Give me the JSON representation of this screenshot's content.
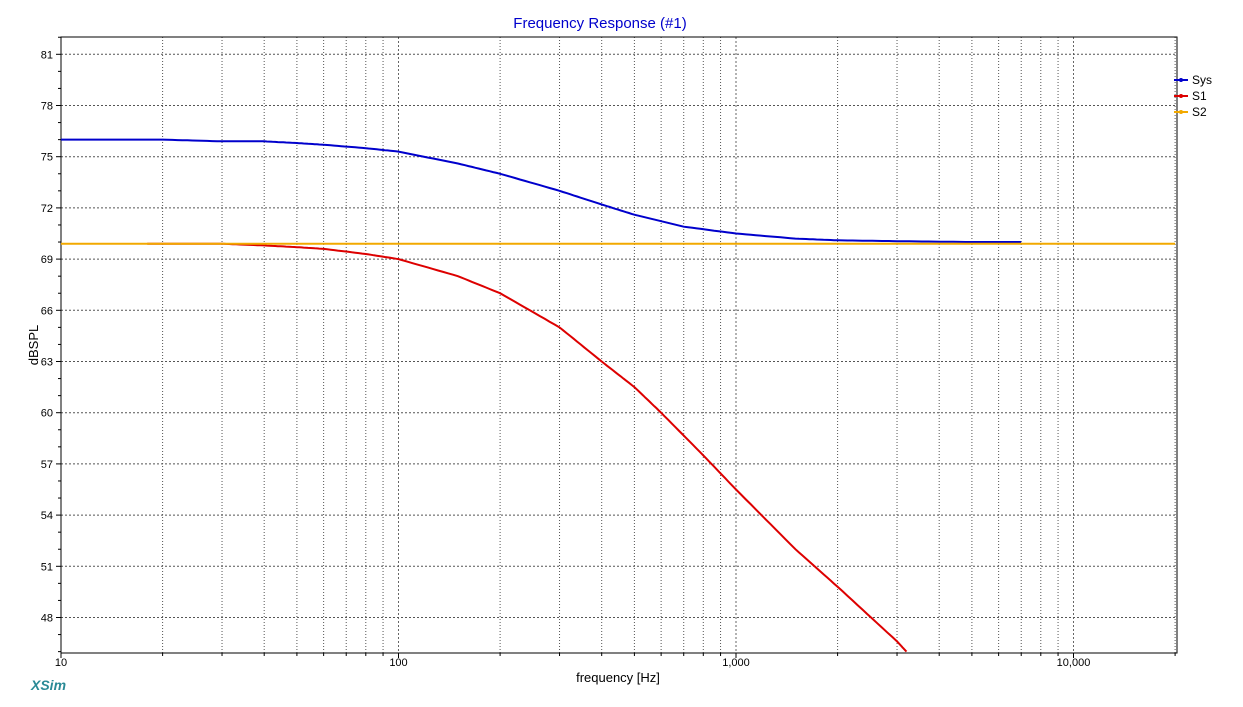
{
  "app": {
    "brand": "XSim"
  },
  "chart_data": {
    "type": "line",
    "title": "Frequency Response (#1)",
    "xlabel": "frequency [Hz]",
    "ylabel": "dBSPL",
    "xscale": "log",
    "xlim": [
      10,
      20000
    ],
    "ylim": [
      46,
      82.5
    ],
    "x_ticks": [
      10,
      100,
      1000,
      10000
    ],
    "x_tick_labels": [
      "10",
      "100",
      "1,000",
      "10,000"
    ],
    "y_ticks": [
      48,
      51,
      54,
      57,
      60,
      63,
      66,
      69,
      72,
      75,
      78,
      81
    ],
    "y_tick_labels": [
      "48",
      "51",
      "54",
      "57",
      "60",
      "63",
      "66",
      "69",
      "72",
      "75",
      "78",
      "81"
    ],
    "grid": true,
    "legend_position": "top-right",
    "series": [
      {
        "name": "Sys",
        "color": "#0000cc",
        "x": [
          10,
          20,
          30,
          40,
          50,
          60,
          80,
          100,
          150,
          200,
          300,
          400,
          500,
          700,
          1000,
          1500,
          2000,
          3000,
          5000,
          7000
        ],
        "y": [
          76.0,
          76.0,
          75.9,
          75.9,
          75.8,
          75.7,
          75.5,
          75.3,
          74.6,
          74.0,
          73.0,
          72.2,
          71.6,
          70.9,
          70.5,
          70.2,
          70.1,
          70.05,
          70.0,
          70.0
        ]
      },
      {
        "name": "S1",
        "color": "#dd0000",
        "x": [
          18,
          30,
          40,
          50,
          60,
          80,
          100,
          150,
          200,
          300,
          400,
          500,
          600,
          800,
          1000,
          1500,
          2000,
          3000,
          3200
        ],
        "y": [
          69.9,
          69.9,
          69.8,
          69.7,
          69.6,
          69.3,
          69.0,
          68.0,
          67.0,
          65.0,
          63.0,
          61.5,
          60.0,
          57.5,
          55.5,
          52.0,
          49.8,
          46.6,
          46.0
        ]
      },
      {
        "name": "S2",
        "color": "#f2a900",
        "x": [
          10,
          20000
        ],
        "y": [
          69.9,
          69.9
        ]
      }
    ]
  }
}
